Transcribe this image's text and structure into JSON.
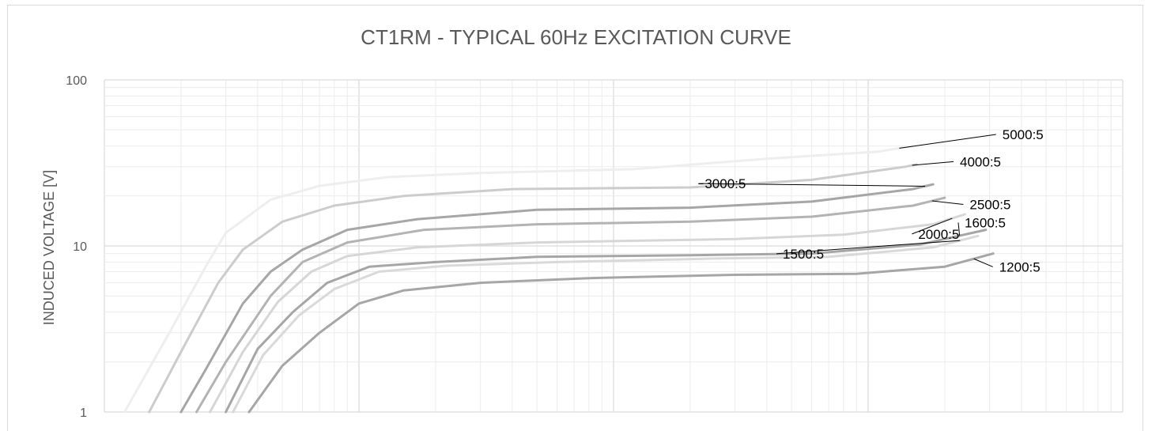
{
  "chart_data": {
    "type": "line",
    "title": "CT1RM - TYPICAL 60Hz EXCITATION CURVE",
    "ylabel": "INDUCED VOLTAGE [V]",
    "xlabel": "",
    "yscale": "log",
    "ylim": [
      1,
      100
    ],
    "xscale": "log",
    "xlim": [
      0.001,
      10
    ],
    "y_ticks": [
      "1",
      "10",
      "100"
    ],
    "grid": true,
    "legend": "none",
    "colors": {
      "grid_major": "#d9d9d9",
      "grid_minor": "#ececec",
      "text": "#595959",
      "leader": "#000000"
    },
    "series": [
      {
        "name": "5000:5",
        "color": "#eeeeee",
        "x": [
          0.0012,
          0.0018,
          0.0025,
          0.003,
          0.0045,
          0.007,
          0.013,
          0.03,
          0.12,
          0.4,
          1.1,
          1.5
        ],
        "y": [
          1,
          3,
          7.5,
          12,
          19,
          23,
          26,
          27.5,
          29,
          33.5,
          37,
          40
        ],
        "label_x": 1.9,
        "label_y": 43
      },
      {
        "name": "4000:5",
        "color": "#cccccc",
        "x": [
          0.0015,
          0.002,
          0.0028,
          0.0035,
          0.005,
          0.008,
          0.015,
          0.04,
          0.2,
          0.6,
          1.4,
          1.55
        ],
        "y": [
          1,
          2.3,
          6,
          9.5,
          14,
          17.5,
          20,
          22,
          22.5,
          25,
          30,
          31
        ],
        "label_x": 1.85,
        "label_y": 29.5
      },
      {
        "name": "3000:5",
        "color": "#a6a6a6",
        "x": [
          0.002,
          0.0025,
          0.0035,
          0.0045,
          0.006,
          0.009,
          0.017,
          0.05,
          0.2,
          0.6,
          1.5,
          1.8
        ],
        "y": [
          1,
          1.8,
          4.5,
          7,
          9.5,
          12.5,
          14.5,
          16.5,
          17,
          18.5,
          22,
          23.5
        ],
        "label_x": 0.45,
        "label_y": 22
      },
      {
        "name": "2500:5",
        "color": "#b3b3b3",
        "x": [
          0.0023,
          0.003,
          0.0045,
          0.006,
          0.009,
          0.018,
          0.05,
          0.2,
          0.6,
          1.5,
          2.0
        ],
        "y": [
          1,
          2,
          5,
          8,
          10.5,
          12.5,
          13.5,
          14,
          15,
          17.5,
          19.5
        ],
        "label_x": 2.25,
        "label_y": 17.2
      },
      {
        "name": "2000:5",
        "color": "#d6d6d6",
        "x": [
          0.0026,
          0.0035,
          0.0048,
          0.0065,
          0.009,
          0.017,
          0.05,
          0.3,
          0.8,
          1.8,
          2.4
        ],
        "y": [
          1,
          2.3,
          4.6,
          7,
          8.7,
          9.8,
          10.5,
          11,
          11.7,
          13.5,
          15.5
        ],
        "label_x": 0.92,
        "label_y": 11.3
      },
      {
        "name": "1600:5",
        "color": "#a6a6a6",
        "x": [
          0.003,
          0.004,
          0.0055,
          0.0075,
          0.011,
          0.02,
          0.05,
          0.2,
          0.6,
          1.6,
          2.9
        ],
        "y": [
          1,
          2.4,
          4,
          6,
          7.5,
          8,
          8.6,
          8.8,
          9,
          10.2,
          12.5
        ],
        "label_x": 2.8,
        "label_y": 11.6
      },
      {
        "name": "1500:5",
        "color": "#d9d9d9",
        "x": [
          0.0032,
          0.0042,
          0.0058,
          0.008,
          0.012,
          0.022,
          0.06,
          0.25,
          0.7,
          1.8,
          2.7
        ],
        "y": [
          1,
          2.2,
          3.8,
          5.5,
          7,
          7.6,
          8,
          8.4,
          8.6,
          9.8,
          11.5
        ],
        "label_x": 0.79,
        "label_y": 8.5
      },
      {
        "name": "1200:5",
        "color": "#a6a6a6",
        "x": [
          0.0037,
          0.005,
          0.007,
          0.01,
          0.015,
          0.03,
          0.08,
          0.3,
          0.9,
          2.0,
          3.1
        ],
        "y": [
          1,
          1.9,
          3,
          4.5,
          5.4,
          6,
          6.4,
          6.7,
          6.8,
          7.5,
          9
        ],
        "label_x": 1.6,
        "label_y": 7.4
      }
    ]
  }
}
